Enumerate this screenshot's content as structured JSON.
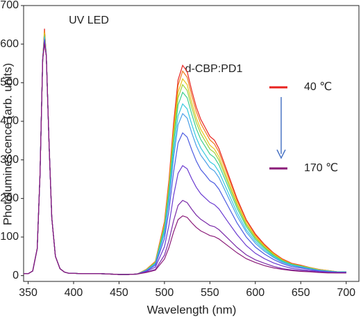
{
  "chart_data": {
    "type": "line",
    "annotations": [
      "UV LED",
      "d-CBP:PD1"
    ],
    "xlabel": "Wavelength (nm)",
    "ylabel": "Photoluminescence (arb. units)",
    "xlim": [
      345,
      714
    ],
    "ylim": [
      -15,
      700
    ],
    "xticks": [
      350,
      400,
      450,
      500,
      550,
      600,
      650,
      700
    ],
    "yticks": [
      0,
      100,
      200,
      300,
      400,
      500,
      600,
      700
    ],
    "x": [
      345,
      350,
      355,
      360,
      363,
      366,
      368,
      370,
      373,
      376,
      380,
      385,
      390,
      395,
      400,
      410,
      420,
      430,
      440,
      450,
      460,
      470,
      480,
      490,
      500,
      505,
      510,
      515,
      520,
      525,
      530,
      535,
      540,
      545,
      550,
      555,
      560,
      570,
      580,
      590,
      600,
      610,
      620,
      630,
      640,
      650,
      660,
      670,
      680,
      690,
      700
    ],
    "series": [
      {
        "name": "40 ℃",
        "color": "#e8231f",
        "values": [
          5,
          5,
          12,
          70,
          260,
          560,
          640,
          570,
          340,
          150,
          50,
          18,
          9,
          6,
          6,
          5,
          5,
          5,
          4,
          3,
          3,
          4,
          16,
          37,
          140,
          248,
          394,
          507,
          545,
          529,
          480,
          437,
          405,
          383,
          361,
          351,
          329,
          264,
          199,
          145,
          108,
          81,
          59,
          43,
          32,
          27,
          21,
          16,
          13,
          10,
          10
        ]
      },
      {
        "color": "#f07a1a",
        "values": [
          5,
          5,
          12,
          70,
          260,
          560,
          635,
          570,
          340,
          150,
          50,
          18,
          9,
          6,
          6,
          5,
          5,
          5,
          4,
          3,
          3,
          4,
          16,
          37,
          136,
          241,
          383,
          493,
          530,
          514,
          467,
          425,
          394,
          373,
          352,
          341,
          320,
          257,
          194,
          142,
          105,
          79,
          58,
          42,
          31,
          26,
          21,
          16,
          13,
          10,
          10
        ]
      },
      {
        "color": "#e8c51a",
        "values": [
          5,
          5,
          12,
          70,
          260,
          560,
          630,
          570,
          340,
          150,
          50,
          18,
          9,
          6,
          6,
          5,
          5,
          5,
          4,
          3,
          3,
          4,
          15,
          35,
          131,
          232,
          369,
          475,
          510,
          495,
          449,
          409,
          379,
          359,
          338,
          328,
          308,
          247,
          187,
          136,
          101,
          76,
          56,
          40,
          30,
          25,
          20,
          15,
          13,
          10,
          10
        ]
      },
      {
        "color": "#9ad23a",
        "values": [
          5,
          5,
          12,
          70,
          260,
          560,
          625,
          570,
          340,
          150,
          50,
          18,
          9,
          6,
          6,
          5,
          5,
          5,
          4,
          3,
          3,
          4,
          15,
          34,
          128,
          226,
          358,
          461,
          495,
          480,
          436,
          397,
          368,
          348,
          328,
          319,
          299,
          240,
          181,
          132,
          98,
          74,
          54,
          39,
          30,
          25,
          20,
          15,
          12,
          10,
          10
        ]
      },
      {
        "color": "#3ccf8e",
        "values": [
          5,
          5,
          12,
          70,
          260,
          560,
          620,
          570,
          340,
          150,
          50,
          18,
          9,
          6,
          6,
          5,
          5,
          5,
          4,
          3,
          3,
          4,
          14,
          33,
          123,
          217,
          343,
          442,
          475,
          461,
          419,
          381,
          353,
          334,
          315,
          306,
          287,
          231,
          174,
          127,
          94,
          71,
          52,
          38,
          29,
          24,
          19,
          14,
          12,
          10,
          10
        ]
      },
      {
        "color": "#36c9e0",
        "values": [
          5,
          5,
          12,
          70,
          260,
          560,
          618,
          570,
          340,
          150,
          50,
          18,
          9,
          6,
          6,
          5,
          5,
          5,
          4,
          3,
          3,
          4,
          14,
          31,
          115,
          203,
          322,
          414,
          445,
          432,
          392,
          357,
          331,
          313,
          295,
          287,
          269,
          216,
          163,
          119,
          89,
          67,
          49,
          36,
          27,
          23,
          18,
          14,
          12,
          9,
          9
        ]
      },
      {
        "color": "#4aa0e8",
        "values": [
          5,
          5,
          12,
          70,
          260,
          560,
          615,
          570,
          340,
          150,
          50,
          18,
          9,
          6,
          6,
          5,
          5,
          5,
          4,
          3,
          3,
          4,
          13,
          30,
          109,
          192,
          304,
          391,
          420,
          408,
          370,
          337,
          312,
          296,
          279,
          271,
          254,
          204,
          154,
          113,
          84,
          63,
          47,
          34,
          26,
          22,
          17,
          13,
          11,
          9,
          9
        ]
      },
      {
        "color": "#4a5ae0",
        "values": [
          5,
          5,
          12,
          70,
          260,
          560,
          612,
          570,
          340,
          150,
          50,
          18,
          9,
          6,
          6,
          5,
          5,
          5,
          4,
          3,
          3,
          4,
          12,
          27,
          96,
          169,
          268,
          344,
          370,
          359,
          326,
          297,
          275,
          261,
          246,
          239,
          224,
          180,
          136,
          100,
          74,
          56,
          42,
          31,
          23,
          20,
          16,
          12,
          10,
          9,
          9
        ]
      },
      {
        "color": "#6a3ad0",
        "values": [
          5,
          5,
          12,
          70,
          260,
          560,
          608,
          570,
          340,
          150,
          50,
          18,
          9,
          6,
          6,
          5,
          5,
          5,
          4,
          3,
          3,
          4,
          11,
          22,
          75,
          131,
          207,
          265,
          285,
          277,
          251,
          229,
          212,
          201,
          190,
          184,
          173,
          139,
          106,
          78,
          58,
          44,
          33,
          25,
          19,
          16,
          13,
          11,
          9,
          8,
          8
        ]
      },
      {
        "color": "#7a2aa8",
        "values": [
          5,
          5,
          12,
          70,
          260,
          560,
          604,
          570,
          340,
          150,
          50,
          18,
          9,
          6,
          6,
          5,
          5,
          5,
          4,
          3,
          3,
          4,
          9,
          16,
          53,
          91,
          142,
          182,
          195,
          189,
          172,
          157,
          146,
          138,
          130,
          127,
          119,
          96,
          73,
          54,
          41,
          32,
          24,
          18,
          15,
          13,
          11,
          9,
          8,
          7,
          7
        ]
      },
      {
        "name": "170 ℃",
        "color": "#8a1a78",
        "values": [
          5,
          5,
          12,
          70,
          260,
          560,
          600,
          570,
          340,
          150,
          50,
          18,
          9,
          6,
          6,
          5,
          5,
          5,
          4,
          3,
          3,
          4,
          8,
          14,
          43,
          73,
          113,
          145,
          155,
          151,
          137,
          125,
          116,
          110,
          104,
          101,
          95,
          77,
          59,
          44,
          34,
          26,
          20,
          16,
          13,
          11,
          10,
          8,
          7,
          7,
          7
        ]
      }
    ]
  }
}
